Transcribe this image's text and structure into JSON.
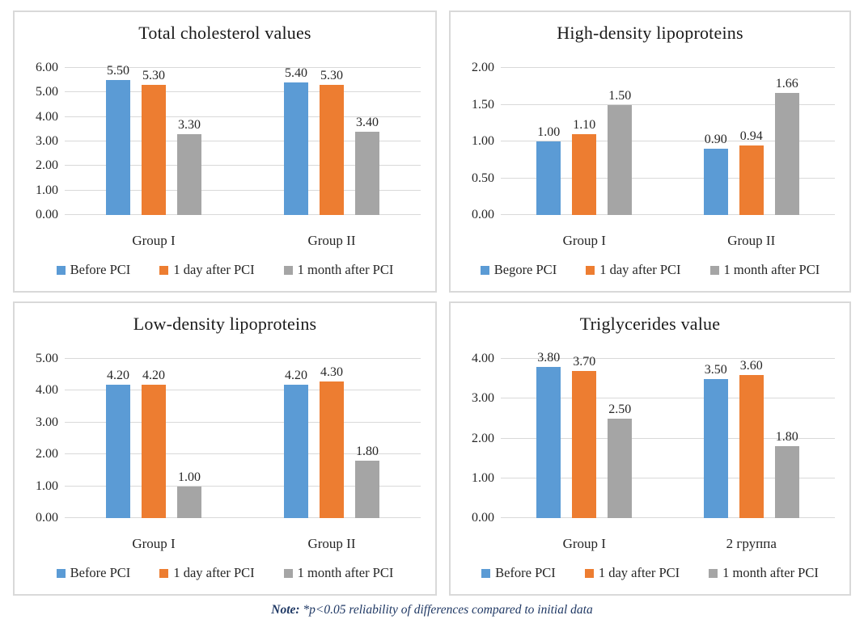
{
  "colors": {
    "blue": "#5B9BD5",
    "orange": "#ED7D31",
    "gray": "#A5A5A5",
    "gridline": "#D9D9D9",
    "panel_border": "#D9D9D9",
    "text": "#262626",
    "note_text": "#1F3864"
  },
  "note": {
    "prefix": "Note:",
    "text": " *p<0.05 reliability of differences compared to initial data"
  },
  "chart_data": [
    {
      "id": "total-cholesterol",
      "type": "bar",
      "title": "Total cholesterol values",
      "categories": [
        "Group I",
        "Group II"
      ],
      "series": [
        {
          "name": "Before PCI",
          "color_key": "blue",
          "values": [
            5.5,
            5.4
          ]
        },
        {
          "name": "1 day after PCI",
          "color_key": "orange",
          "values": [
            5.3,
            5.3
          ]
        },
        {
          "name": "1 month after PCI",
          "color_key": "gray",
          "values": [
            3.3,
            3.4
          ]
        }
      ],
      "ylim": [
        0,
        6
      ],
      "ytick_step": 1,
      "grid": true,
      "legend_position": "bottom"
    },
    {
      "id": "hdl",
      "type": "bar",
      "title": "High-density lipoproteins",
      "categories": [
        "Group I",
        "Group II"
      ],
      "series": [
        {
          "name": "Begore PCI",
          "color_key": "blue",
          "values": [
            1.0,
            0.9
          ]
        },
        {
          "name": "1 day after PCI",
          "color_key": "orange",
          "values": [
            1.1,
            0.94
          ]
        },
        {
          "name": "1 month after PCI",
          "color_key": "gray",
          "values": [
            1.5,
            1.66
          ]
        }
      ],
      "ylim": [
        0,
        2
      ],
      "ytick_step": 0.5,
      "grid": true,
      "legend_position": "bottom"
    },
    {
      "id": "ldl",
      "type": "bar",
      "title": "Low-density lipoproteins",
      "categories": [
        "Group I",
        "Group II"
      ],
      "series": [
        {
          "name": "Before PCI",
          "color_key": "blue",
          "values": [
            4.2,
            4.2
          ]
        },
        {
          "name": "1 day after PCI",
          "color_key": "orange",
          "values": [
            4.2,
            4.3
          ]
        },
        {
          "name": "1 month after PCI",
          "color_key": "gray",
          "values": [
            1.0,
            1.8
          ]
        }
      ],
      "ylim": [
        0,
        5
      ],
      "ytick_step": 1,
      "grid": true,
      "legend_position": "bottom"
    },
    {
      "id": "triglycerides",
      "type": "bar",
      "title": "Triglycerides value",
      "categories": [
        "Group I",
        "2 группа"
      ],
      "series": [
        {
          "name": "Before PCI",
          "color_key": "blue",
          "values": [
            3.8,
            3.5
          ]
        },
        {
          "name": "1 day after PCI",
          "color_key": "orange",
          "values": [
            3.7,
            3.6
          ]
        },
        {
          "name": "1 month after PCI",
          "color_key": "gray",
          "values": [
            2.5,
            1.8
          ]
        }
      ],
      "ylim": [
        0,
        4
      ],
      "ytick_step": 1,
      "grid": true,
      "legend_position": "bottom"
    }
  ]
}
